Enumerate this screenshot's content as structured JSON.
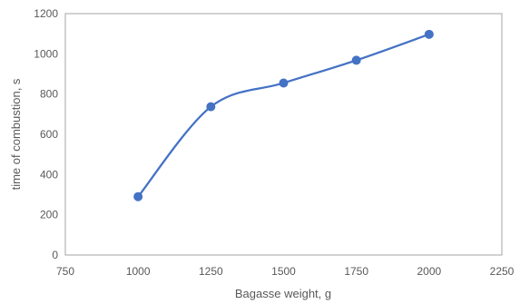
{
  "chart_data": {
    "type": "scatter",
    "title": "",
    "xlabel": "Bagasse weight, g",
    "ylabel": "time of combustion, s",
    "xlim": [
      750,
      2250
    ],
    "ylim": [
      0,
      1200
    ],
    "x_ticks": [
      750,
      1000,
      1250,
      1500,
      1750,
      2000,
      2250
    ],
    "y_ticks": [
      0,
      200,
      400,
      600,
      800,
      1000,
      1200
    ],
    "grid": false,
    "legend": "none",
    "line_style": "smooth",
    "series": [
      {
        "color": "#4472c4",
        "x": [
          1000,
          1250,
          1500,
          1750,
          2000
        ],
        "y": [
          290,
          737,
          855,
          968,
          1097
        ]
      }
    ]
  }
}
